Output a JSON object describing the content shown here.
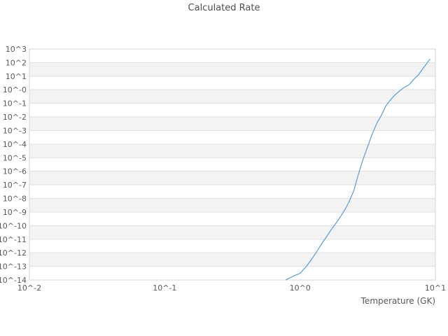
{
  "chart_data": {
    "type": "line",
    "title": "Calculated Rate",
    "xlabel": "Temperature (GK)",
    "ylabel": "",
    "x_scale": "log",
    "y_scale": "log",
    "x_log_range": [
      -2,
      1
    ],
    "y_log_range": [
      3,
      -14
    ],
    "x_tick_log": [
      -2,
      -1,
      0,
      1
    ],
    "x_tick_labels": [
      "10^-2",
      "10^-1",
      "10^0",
      "10^1"
    ],
    "y_tick_log": [
      3,
      2,
      1,
      0,
      -1,
      -2,
      -3,
      -4,
      -5,
      -6,
      -7,
      -8,
      -9,
      -10,
      -11,
      -12,
      -13,
      -14
    ],
    "y_tick_labels": [
      "10^3",
      "10^2",
      "10^1",
      "10^-0",
      "10^-1",
      "10^-2",
      "10^-3",
      "10^-4",
      "10^-5",
      "10^-6",
      "10^-7",
      "10^-8",
      "10^-9",
      "10^-10",
      "10^-11",
      "10^-12",
      "10^-13",
      "10^-14"
    ],
    "grid": "horizontal",
    "band_style": "alternating-decade-rows",
    "legend": "none",
    "series": [
      {
        "name": "calculated-rate",
        "color": "#5b9bd5",
        "temperature_gk": [
          0.79,
          0.84,
          0.9,
          1.0,
          1.12,
          1.22,
          1.32,
          1.45,
          1.56,
          1.7,
          1.82,
          2.0,
          2.15,
          2.3,
          2.5,
          2.7,
          2.9,
          3.1,
          3.4,
          3.7,
          4.0,
          4.3,
          4.6,
          5.0,
          5.45,
          5.9,
          6.4,
          7.0,
          7.5,
          8.0,
          8.5,
          9.1
        ],
        "log10_rate": [
          -13.97,
          -13.85,
          -13.7,
          -13.5,
          -12.97,
          -12.45,
          -11.95,
          -11.3,
          -10.85,
          -10.3,
          -9.9,
          -9.3,
          -8.8,
          -8.25,
          -7.4,
          -6.2,
          -5.2,
          -4.4,
          -3.3,
          -2.45,
          -1.85,
          -1.2,
          -0.8,
          -0.4,
          -0.08,
          0.18,
          0.38,
          0.82,
          1.1,
          1.5,
          1.85,
          2.25
        ]
      }
    ],
    "colors": {
      "background": "#ffffff",
      "band": "#f3f3f3",
      "gridline": "#e0e0e0",
      "border": "#d4d4d4",
      "tick_text": "#595959",
      "title_text": "#4d4d4d",
      "line": "#5b9bd5"
    }
  }
}
